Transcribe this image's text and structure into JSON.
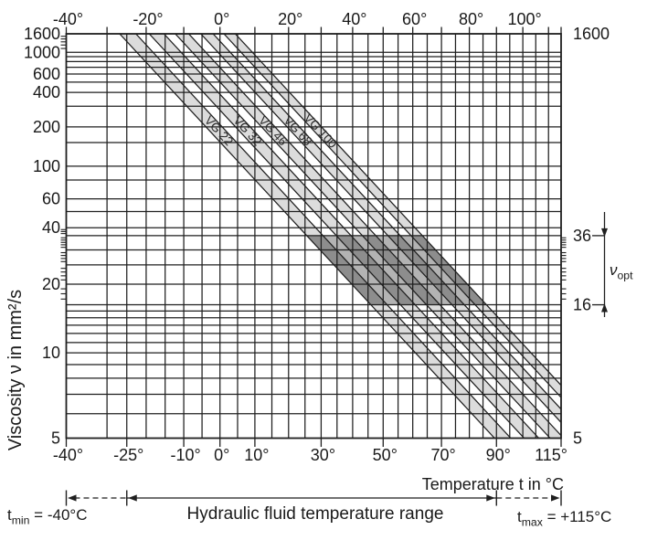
{
  "colors": {
    "background": "#ffffff",
    "line": "#1f1f1f",
    "text": "#1a1a1a",
    "band_fill": "#dcdcdc",
    "optimal_gap_fill": "#b3b3b3",
    "optimal_band_fill": "#8d8d8d",
    "vg_label_text": "#2b2b2b"
  },
  "chart_data": {
    "type": "area",
    "description": "Viscosity-temperature diagram (Ubbelohde-Walther) for ISO VG hydraulic fluids",
    "x_axis": {
      "label": "Temperature t in °C",
      "scale": "log-kelvin",
      "range_c": [
        -40,
        115
      ],
      "top_ticks": [
        {
          "t": -40,
          "label": "-40°"
        },
        {
          "t": -20,
          "label": "-20°"
        },
        {
          "t": 0,
          "label": "0°"
        },
        {
          "t": 20,
          "label": "20°"
        },
        {
          "t": 40,
          "label": "40°"
        },
        {
          "t": 60,
          "label": "60°"
        },
        {
          "t": 80,
          "label": "80°"
        },
        {
          "t": 100,
          "label": "100°"
        }
      ],
      "top_minor_ticks": [
        -40,
        -30,
        -20,
        -10,
        0,
        10,
        20,
        30,
        40,
        50,
        60,
        70,
        80,
        90,
        100,
        110,
        115
      ],
      "bottom_ticks": [
        {
          "t": -40,
          "label": "-40°"
        },
        {
          "t": -25,
          "label": "-25°"
        },
        {
          "t": -10,
          "label": "-10°"
        },
        {
          "t": 0,
          "label": "0°"
        },
        {
          "t": 10,
          "label": "10°"
        },
        {
          "t": 30,
          "label": "30°"
        },
        {
          "t": 50,
          "label": "50°"
        },
        {
          "t": 70,
          "label": "70°"
        },
        {
          "t": 90,
          "label": "90°"
        },
        {
          "t": 115,
          "label": "115°"
        }
      ],
      "gridlines_c": [
        -30,
        -25,
        -20,
        -15,
        -10,
        -5,
        0,
        5,
        10,
        15,
        20,
        25,
        30,
        35,
        40,
        45,
        50,
        55,
        60,
        65,
        70,
        75,
        80,
        85,
        90,
        95,
        100,
        105,
        110
      ]
    },
    "y_axis": {
      "label": "Viscosity ν in mm²/s",
      "scale": "walther-double-log",
      "range": [
        5,
        1600
      ],
      "left_ticks": [
        {
          "v": 1600,
          "label": "1600"
        },
        {
          "v": 1000,
          "label": "1000"
        },
        {
          "v": 600,
          "label": "600"
        },
        {
          "v": 400,
          "label": "400"
        },
        {
          "v": 200,
          "label": "200"
        },
        {
          "v": 100,
          "label": "100"
        },
        {
          "v": 60,
          "label": "60"
        },
        {
          "v": 40,
          "label": "40"
        },
        {
          "v": 20,
          "label": "20"
        },
        {
          "v": 10,
          "label": "10"
        },
        {
          "v": 5,
          "label": "5"
        }
      ],
      "right_ticks": [
        {
          "v": 1600,
          "label": "1600"
        },
        {
          "v": 36,
          "label": "36"
        },
        {
          "v": 16,
          "label": "16"
        },
        {
          "v": 5,
          "label": "5"
        }
      ],
      "gridlines": [
        6,
        7,
        8,
        9,
        10,
        11,
        12,
        13,
        14,
        15,
        16,
        20,
        25,
        30,
        36,
        40,
        50,
        60,
        80,
        100,
        150,
        200,
        300,
        400,
        500,
        600,
        700,
        800,
        900,
        1000
      ],
      "left_minor_ticks": [
        17,
        18,
        19,
        21,
        22,
        23,
        24,
        26,
        27,
        28,
        29,
        31,
        32,
        33,
        34,
        35,
        37,
        38,
        39,
        1100,
        1200,
        1300,
        1400,
        1500
      ],
      "right_minor_ticks": [
        17,
        18,
        19,
        21,
        22,
        23,
        24,
        26,
        27,
        28,
        29,
        31,
        32,
        33,
        34,
        35
      ]
    },
    "bands": [
      {
        "label": "VG 22",
        "v40_mid": 22,
        "v40_min": 19.8,
        "v40_max": 24.2
      },
      {
        "label": "VG 32",
        "v40_mid": 32,
        "v40_min": 28.8,
        "v40_max": 35.2
      },
      {
        "label": "VG 46",
        "v40_mid": 46,
        "v40_min": 41.4,
        "v40_max": 50.6
      },
      {
        "label": "VG 68",
        "v40_mid": 68,
        "v40_min": 61.2,
        "v40_max": 74.8
      },
      {
        "label": "VG 100",
        "v40_mid": 100,
        "v40_min": 90,
        "v40_max": 110
      }
    ],
    "band_slope_walther": 3.715,
    "optimal_region": {
      "v_min": 16,
      "v_max": 36
    },
    "annotations": {
      "nu_opt": {
        "base": "ν",
        "sub": "opt"
      },
      "t_min": {
        "base": "t",
        "sub": "min",
        "rest": " = -40°C"
      },
      "t_max": {
        "base": "t",
        "sub": "max",
        "rest": " = +115°C"
      },
      "range_label": "Hydraulic fluid temperature range"
    }
  }
}
